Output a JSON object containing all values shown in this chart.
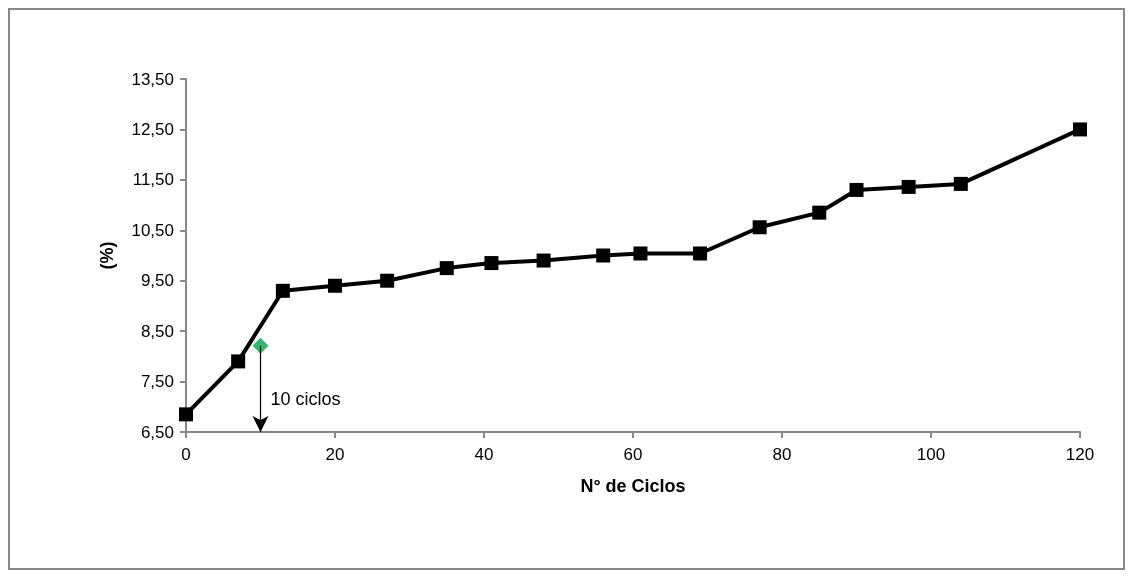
{
  "chart_data": {
    "type": "line",
    "xlabel": "N° de Ciclos",
    "ylabel": "(%)",
    "xlim": [
      0,
      120
    ],
    "xticks": [
      0,
      20,
      40,
      60,
      80,
      100,
      120
    ],
    "ylim": [
      6.5,
      13.5
    ],
    "yticks": [
      {
        "value": 6.5,
        "label": "6,50"
      },
      {
        "value": 7.5,
        "label": "7,50"
      },
      {
        "value": 8.5,
        "label": "8,50"
      },
      {
        "value": 9.5,
        "label": "9,50"
      },
      {
        "value": 10.5,
        "label": "10,50"
      },
      {
        "value": 11.5,
        "label": "11,50"
      },
      {
        "value": 12.5,
        "label": "12,50"
      },
      {
        "value": 13.5,
        "label": "13,50"
      }
    ],
    "grid": false,
    "series": [
      {
        "color": "#000000",
        "marker": "square",
        "line_style": "solid",
        "x": [
          0,
          7,
          13,
          20,
          27,
          35,
          41,
          48,
          56,
          61,
          69,
          77,
          85,
          90,
          97,
          104,
          120
        ],
        "values": [
          6.85,
          7.9,
          9.3,
          9.4,
          9.5,
          9.75,
          9.85,
          9.9,
          10.0,
          10.04,
          10.04,
          10.56,
          10.85,
          11.3,
          11.36,
          11.42,
          12.5
        ]
      },
      {
        "type": "scatter",
        "color": "#00a550",
        "marker": "diamond",
        "x": [
          10
        ],
        "values": [
          8.21
        ]
      }
    ],
    "annotations": [
      {
        "text": "10 ciclos",
        "x": 10,
        "y": 8.21
      }
    ]
  }
}
